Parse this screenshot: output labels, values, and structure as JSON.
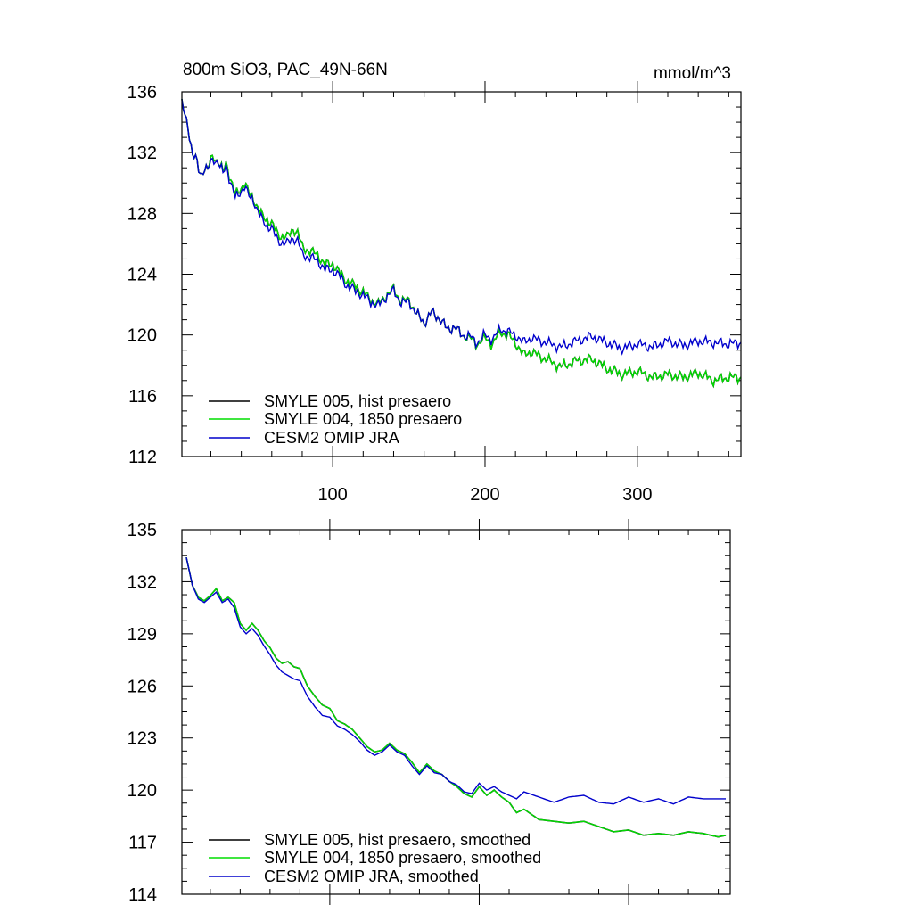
{
  "colors": {
    "smyle005": "#000000",
    "smyle004": "#00dd00",
    "omip": "#0000cc"
  },
  "chart_data": [
    {
      "type": "line",
      "title": "800m SiO3, PAC_49N-66N",
      "units": "mmol/m^3",
      "xlabel": "",
      "ylabel": "",
      "xlim": [
        1,
        368
      ],
      "ylim": [
        112,
        136
      ],
      "xticks": [
        100,
        200,
        300
      ],
      "yticks": [
        112,
        116,
        120,
        124,
        128,
        132,
        136
      ],
      "legend": [
        "SMYLE 005, hist presaero",
        "SMYLE 004, 1850 presaero",
        "CESM2 OMIP JRA"
      ],
      "series_anchor": {
        "x": [
          1,
          5,
          8,
          10,
          12,
          14,
          16,
          18,
          20,
          22,
          25,
          28,
          30,
          33,
          36,
          40,
          42,
          45,
          48,
          51,
          54,
          57,
          60,
          63,
          66,
          70,
          74,
          77,
          80,
          85,
          90,
          95,
          100,
          105,
          110,
          115,
          120,
          125,
          130,
          135,
          140,
          145,
          150,
          155,
          160,
          165,
          170,
          175,
          180,
          185,
          190,
          195,
          200,
          205,
          210,
          215,
          220,
          225,
          230,
          240,
          250,
          260,
          270,
          280,
          290,
          300,
          310,
          320,
          330,
          340,
          350,
          360,
          368
        ],
        "smyle": [
          135.2,
          133.8,
          131.8,
          131.6,
          130.9,
          130.6,
          131.0,
          130.8,
          131.6,
          131.8,
          131.3,
          130.7,
          131.4,
          130.2,
          129.2,
          129.7,
          130.0,
          129.3,
          129.0,
          128.3,
          127.8,
          127.6,
          127.3,
          126.8,
          126.5,
          126.4,
          127.0,
          126.7,
          125.8,
          125.5,
          125.3,
          124.6,
          124.7,
          124.0,
          123.5,
          123.2,
          122.8,
          122.3,
          122.0,
          122.6,
          123.0,
          122.2,
          122.3,
          121.4,
          120.8,
          121.5,
          121.1,
          120.4,
          120.5,
          120.0,
          119.8,
          119.4,
          119.8,
          119.4,
          120.2,
          120.0,
          119.5,
          118.7,
          118.9,
          118.4,
          117.9,
          118.3,
          118.4,
          117.8,
          117.4,
          117.6,
          117.2,
          117.4,
          117.2,
          117.5,
          117.0,
          117.2,
          117.2
        ],
        "omip": [
          135.2,
          133.8,
          131.8,
          131.6,
          130.9,
          130.6,
          131.0,
          130.8,
          131.4,
          131.6,
          131.3,
          130.6,
          131.2,
          130.0,
          129.0,
          129.5,
          129.8,
          129.1,
          128.9,
          128.1,
          127.5,
          127.2,
          127.0,
          126.4,
          126.1,
          126.0,
          126.4,
          126.2,
          125.3,
          125.1,
          124.9,
          124.3,
          124.3,
          123.8,
          123.2,
          122.9,
          122.6,
          122.2,
          121.9,
          122.5,
          122.9,
          122.1,
          122.2,
          121.4,
          120.8,
          121.5,
          121.1,
          120.4,
          120.5,
          120.0,
          119.9,
          119.5,
          120.0,
          119.7,
          120.4,
          120.2,
          120.0,
          119.5,
          119.8,
          119.5,
          119.2,
          119.6,
          119.9,
          119.5,
          119.1,
          119.4,
          119.2,
          119.6,
          119.3,
          119.6,
          119.5,
          119.4,
          119.5
        ]
      }
    },
    {
      "type": "line",
      "title": "",
      "xlabel": "",
      "ylabel": "",
      "xlim": [
        1,
        368
      ],
      "ylim": [
        114,
        135
      ],
      "xticks": [
        100,
        200,
        300
      ],
      "yticks": [
        114,
        117,
        120,
        123,
        126,
        129,
        132,
        135
      ],
      "legend": [
        "SMYLE 005, hist presaero, smoothed",
        "SMYLE 004, 1850 presaero, smoothed",
        "CESM2 OMIP JRA, smoothed"
      ],
      "series_anchor": {
        "x": [
          4,
          8,
          12,
          16,
          20,
          24,
          28,
          32,
          36,
          40,
          44,
          48,
          52,
          56,
          60,
          64,
          68,
          72,
          76,
          80,
          85,
          90,
          95,
          100,
          105,
          110,
          115,
          120,
          125,
          130,
          135,
          140,
          145,
          150,
          155,
          160,
          165,
          170,
          175,
          180,
          185,
          190,
          195,
          200,
          205,
          210,
          215,
          220,
          225,
          230,
          240,
          250,
          260,
          270,
          280,
          290,
          300,
          310,
          320,
          330,
          340,
          350,
          360,
          365
        ],
        "smyle": [
          133.4,
          131.8,
          131.1,
          130.9,
          131.2,
          131.6,
          130.9,
          131.1,
          130.8,
          129.6,
          129.2,
          129.6,
          129.2,
          128.6,
          128.2,
          127.6,
          127.3,
          127.4,
          127.1,
          127.0,
          126.0,
          125.4,
          124.9,
          124.7,
          124.0,
          123.8,
          123.5,
          123.0,
          122.5,
          122.2,
          122.3,
          122.7,
          122.3,
          122.1,
          121.6,
          121.0,
          121.5,
          121.1,
          120.9,
          120.5,
          120.2,
          119.8,
          119.6,
          120.2,
          119.7,
          120.0,
          119.6,
          119.3,
          118.7,
          118.9,
          118.3,
          118.2,
          118.1,
          118.2,
          117.9,
          117.6,
          117.7,
          117.4,
          117.5,
          117.4,
          117.6,
          117.5,
          117.3,
          117.4
        ],
        "omip": [
          133.4,
          131.8,
          131.0,
          130.8,
          131.1,
          131.4,
          130.8,
          131.0,
          130.5,
          129.4,
          129.0,
          129.3,
          128.9,
          128.3,
          127.8,
          127.2,
          126.8,
          126.6,
          126.4,
          126.3,
          125.4,
          124.8,
          124.3,
          124.2,
          123.7,
          123.5,
          123.2,
          122.8,
          122.3,
          122.0,
          122.2,
          122.6,
          122.2,
          122.0,
          121.4,
          120.9,
          121.4,
          121.0,
          120.9,
          120.5,
          120.3,
          119.9,
          119.8,
          120.4,
          120.0,
          120.2,
          119.9,
          119.7,
          119.5,
          119.9,
          119.6,
          119.3,
          119.6,
          119.7,
          119.3,
          119.2,
          119.6,
          119.3,
          119.5,
          119.2,
          119.6,
          119.5,
          119.5,
          119.5
        ]
      }
    }
  ]
}
